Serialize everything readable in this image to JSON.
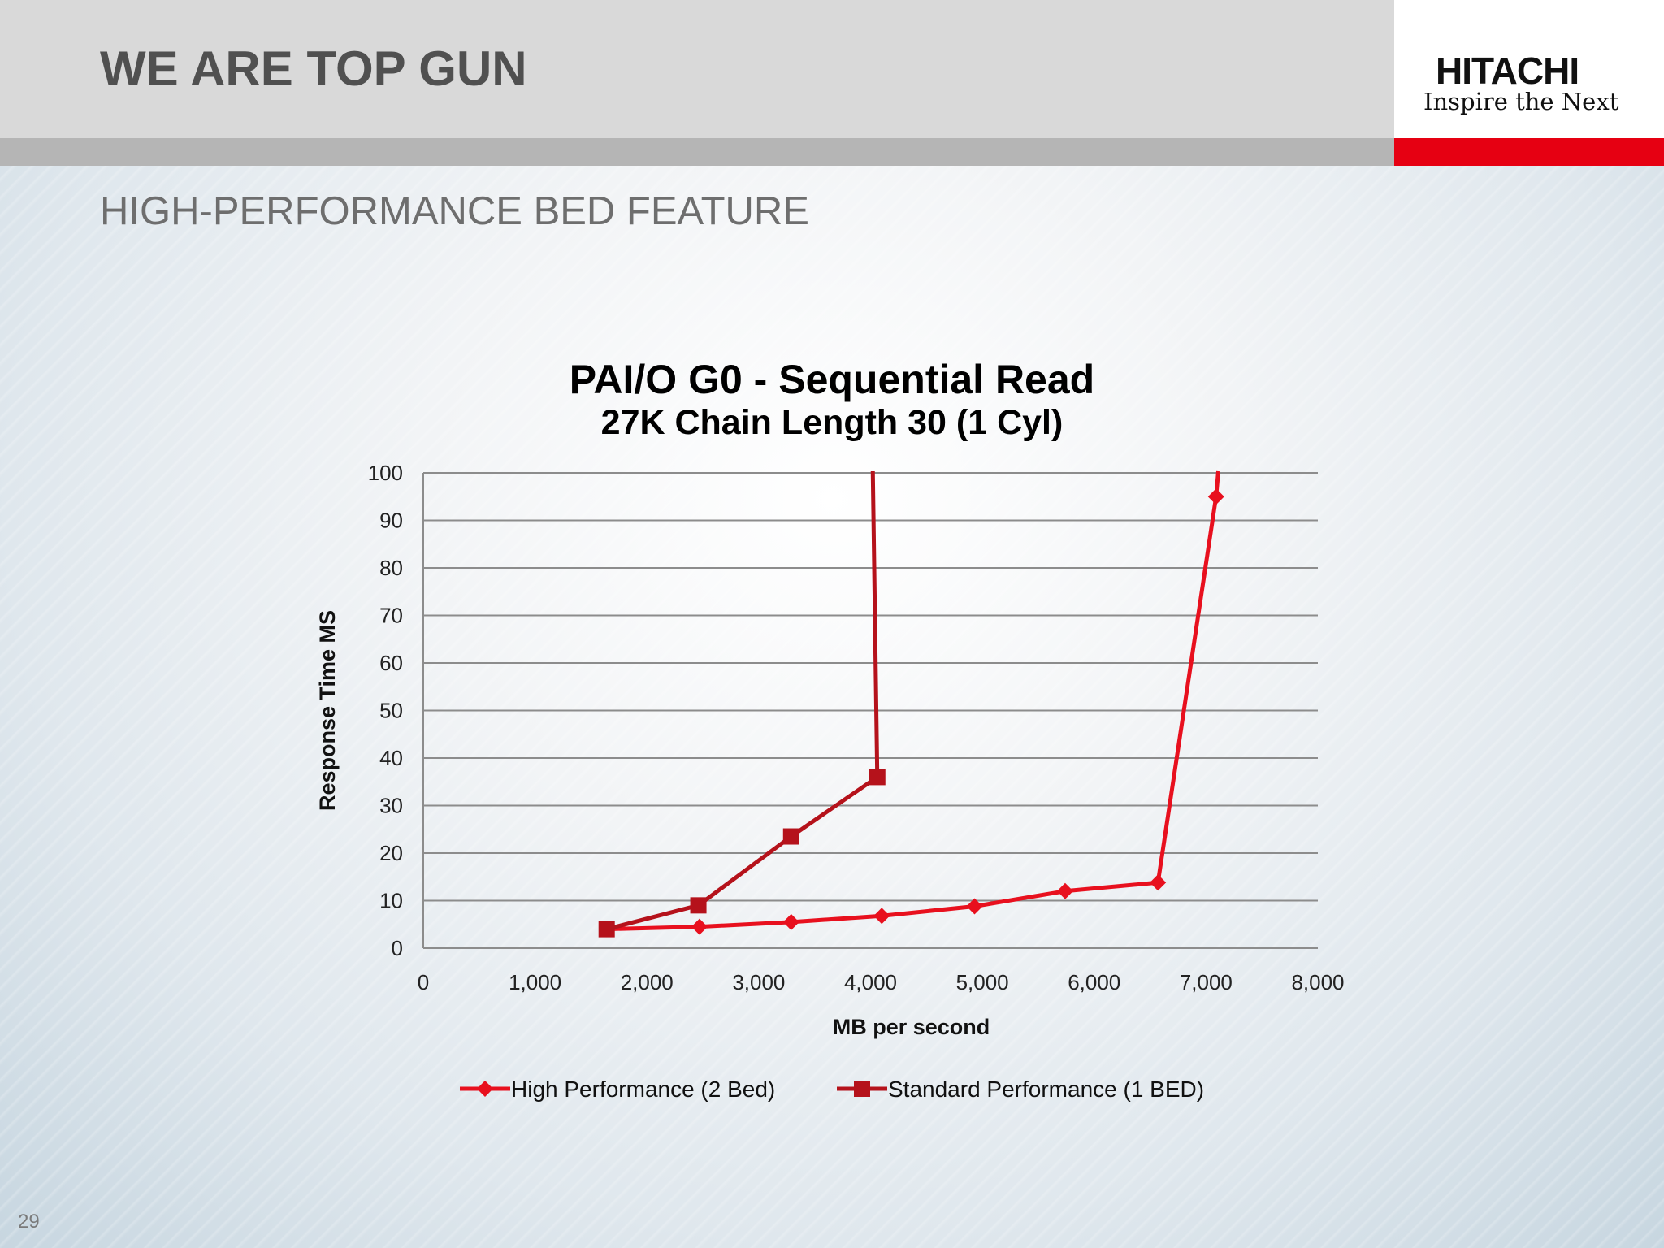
{
  "header": {
    "title": "WE ARE TOP GUN",
    "subtitle": "HIGH-PERFORMANCE BED FEATURE",
    "logo_word": "HITACHI",
    "logo_tagline": "Inspire the Next"
  },
  "footer": {
    "page_number": "29"
  },
  "colors": {
    "header_band": "#d9d9d9",
    "brand_red": "#e60012",
    "series_high": "#e8101e",
    "series_standard": "#b5121b"
  },
  "chart_data": {
    "type": "line",
    "title": "PAI/O G0 - Sequential Read",
    "subtitle": "27K Chain Length 30 (1 Cyl)",
    "xlabel": "MB per second",
    "ylabel": "Response Time MS",
    "xlim": [
      0,
      8000
    ],
    "ylim": [
      0,
      100
    ],
    "x_ticks": [
      0,
      1000,
      2000,
      3000,
      4000,
      5000,
      6000,
      7000,
      8000
    ],
    "x_tick_labels": [
      "0",
      "1,000",
      "2,000",
      "3,000",
      "4,000",
      "5,000",
      "6,000",
      "7,000",
      "8,000"
    ],
    "y_ticks": [
      0,
      10,
      20,
      30,
      40,
      50,
      60,
      70,
      80,
      90,
      100
    ],
    "y_tick_labels": [
      "0",
      "10",
      "20",
      "30",
      "40",
      "50",
      "60",
      "70",
      "80",
      "90",
      "100"
    ],
    "grid": "horizontal",
    "legend_position": "bottom",
    "series": [
      {
        "name": "High Performance (2  Bed)",
        "marker": "diamond",
        "color": "#e8101e",
        "points": [
          [
            1640,
            4
          ],
          [
            2470,
            4.5
          ],
          [
            3290,
            5.5
          ],
          [
            4100,
            6.8
          ],
          [
            4930,
            8.8
          ],
          [
            5740,
            12
          ],
          [
            6570,
            13.8
          ],
          [
            7090,
            95
          ]
        ],
        "continues_above_axis_at_x": 7110
      },
      {
        "name": "Standard Performance (1 BED)",
        "marker": "square",
        "color": "#b5121b",
        "points": [
          [
            1640,
            4
          ],
          [
            2460,
            9
          ],
          [
            3290,
            23.5
          ],
          [
            4060,
            36
          ]
        ],
        "continues_above_axis_at_x": 4020
      }
    ]
  }
}
